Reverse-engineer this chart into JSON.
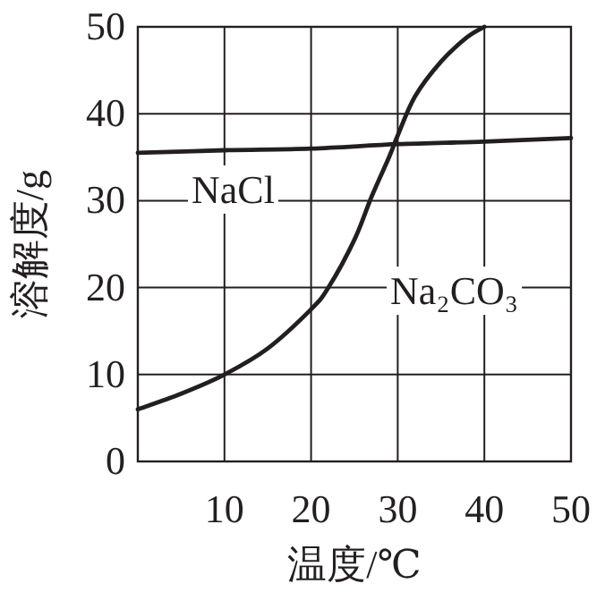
{
  "chart_data": {
    "type": "line",
    "xlabel": "温度/℃",
    "ylabel": "溶解度/g",
    "xlim": [
      0,
      50
    ],
    "ylim": [
      0,
      50
    ],
    "xticks": [
      {
        "value": 0,
        "label": null
      },
      10,
      20,
      30,
      40,
      50
    ],
    "yticks": [
      0,
      10,
      20,
      30,
      40,
      50
    ],
    "grid": true,
    "marker": "none",
    "line_style": "solid",
    "series": [
      {
        "name": "NaCl",
        "color": "#231f20",
        "x": [
          0,
          10,
          20,
          30,
          40,
          50
        ],
        "values": [
          35.5,
          35.8,
          36,
          36.5,
          36.8,
          37.2
        ]
      },
      {
        "name": "Na₂CO₃",
        "color": "#231f20",
        "x": [
          0,
          5,
          10,
          15,
          20,
          22,
          25,
          27,
          29,
          30,
          32,
          35,
          38,
          40
        ],
        "values": [
          6,
          7.8,
          10,
          13,
          17.5,
          20,
          25.5,
          30.5,
          35,
          37.5,
          42,
          46,
          48.8,
          50
        ]
      }
    ]
  }
}
